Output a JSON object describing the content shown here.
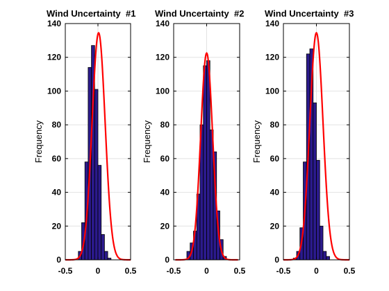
{
  "chart_data": [
    {
      "type": "bar",
      "title": "Wind Uncertainty  #1",
      "ylabel": "Frequency",
      "xlim": [
        -0.5,
        0.5
      ],
      "ylim": [
        0,
        140
      ],
      "xticks": [
        "-0.5",
        "0",
        "0.5"
      ],
      "yticks": [
        "0",
        "20",
        "40",
        "60",
        "80",
        "100",
        "120",
        "140"
      ],
      "grid": true,
      "bar_color": "#2b1a8c",
      "bins": [
        {
          "x0": -0.3,
          "x1": -0.25,
          "value": 5
        },
        {
          "x0": -0.25,
          "x1": -0.2,
          "value": 22
        },
        {
          "x0": -0.2,
          "x1": -0.15,
          "value": 58
        },
        {
          "x0": -0.15,
          "x1": -0.1,
          "value": 114
        },
        {
          "x0": -0.1,
          "x1": -0.05,
          "value": 127
        },
        {
          "x0": -0.05,
          "x1": 0.0,
          "value": 101
        },
        {
          "x0": 0.0,
          "x1": 0.05,
          "value": 56
        },
        {
          "x0": 0.05,
          "x1": 0.1,
          "value": 15
        },
        {
          "x0": 0.1,
          "x1": 0.15,
          "value": 5
        },
        {
          "x0": 0.15,
          "x1": 0.2,
          "value": 1
        }
      ],
      "fit": {
        "type": "normal",
        "mean": 0.01,
        "std": 0.1,
        "peak": 134.5,
        "color": "#ff0000"
      }
    },
    {
      "type": "bar",
      "title": "Wind Uncertainty  #2",
      "ylabel": "Frequency",
      "xlim": [
        -0.5,
        0.5
      ],
      "ylim": [
        0,
        140
      ],
      "xticks": [
        "-0.5",
        "0",
        "0.5"
      ],
      "yticks": [
        "0",
        "20",
        "40",
        "60",
        "80",
        "100",
        "120",
        "140"
      ],
      "grid": true,
      "bar_color": "#2b1a8c",
      "bins": [
        {
          "x0": -0.3,
          "x1": -0.25,
          "value": 5
        },
        {
          "x0": -0.25,
          "x1": -0.2,
          "value": 10
        },
        {
          "x0": -0.2,
          "x1": -0.15,
          "value": 17
        },
        {
          "x0": -0.15,
          "x1": -0.1,
          "value": 39
        },
        {
          "x0": -0.1,
          "x1": -0.05,
          "value": 80
        },
        {
          "x0": -0.05,
          "x1": 0.0,
          "value": 115
        },
        {
          "x0": 0.0,
          "x1": 0.05,
          "value": 118
        },
        {
          "x0": 0.05,
          "x1": 0.1,
          "value": 77
        },
        {
          "x0": 0.1,
          "x1": 0.15,
          "value": 64
        },
        {
          "x0": 0.15,
          "x1": 0.2,
          "value": 29
        },
        {
          "x0": 0.2,
          "x1": 0.25,
          "value": 12
        },
        {
          "x0": 0.25,
          "x1": 0.3,
          "value": 2
        }
      ],
      "fit": {
        "type": "normal",
        "mean": 0.0,
        "std": 0.09,
        "peak": 122.5,
        "color": "#ff0000"
      }
    },
    {
      "type": "bar",
      "title": "Wind Uncertainty  #3",
      "ylabel": "Frequency",
      "xlim": [
        -0.5,
        0.5
      ],
      "ylim": [
        0,
        140
      ],
      "xticks": [
        "-0.5",
        "0",
        "0.5"
      ],
      "yticks": [
        "0",
        "20",
        "40",
        "60",
        "80",
        "100",
        "120",
        "140"
      ],
      "grid": true,
      "bar_color": "#2b1a8c",
      "bins": [
        {
          "x0": -0.35,
          "x1": -0.3,
          "value": 1
        },
        {
          "x0": -0.3,
          "x1": -0.25,
          "value": 5
        },
        {
          "x0": -0.25,
          "x1": -0.2,
          "value": 19
        },
        {
          "x0": -0.2,
          "x1": -0.15,
          "value": 58
        },
        {
          "x0": -0.15,
          "x1": -0.1,
          "value": 122
        },
        {
          "x0": -0.1,
          "x1": -0.05,
          "value": 125
        },
        {
          "x0": -0.05,
          "x1": 0.0,
          "value": 93
        },
        {
          "x0": 0.0,
          "x1": 0.05,
          "value": 59
        },
        {
          "x0": 0.05,
          "x1": 0.1,
          "value": 20
        },
        {
          "x0": 0.1,
          "x1": 0.15,
          "value": 5
        },
        {
          "x0": 0.15,
          "x1": 0.2,
          "value": 2
        }
      ],
      "fit": {
        "type": "normal",
        "mean": 0.0,
        "std": 0.1,
        "peak": 134.5,
        "color": "#ff0000"
      }
    }
  ]
}
